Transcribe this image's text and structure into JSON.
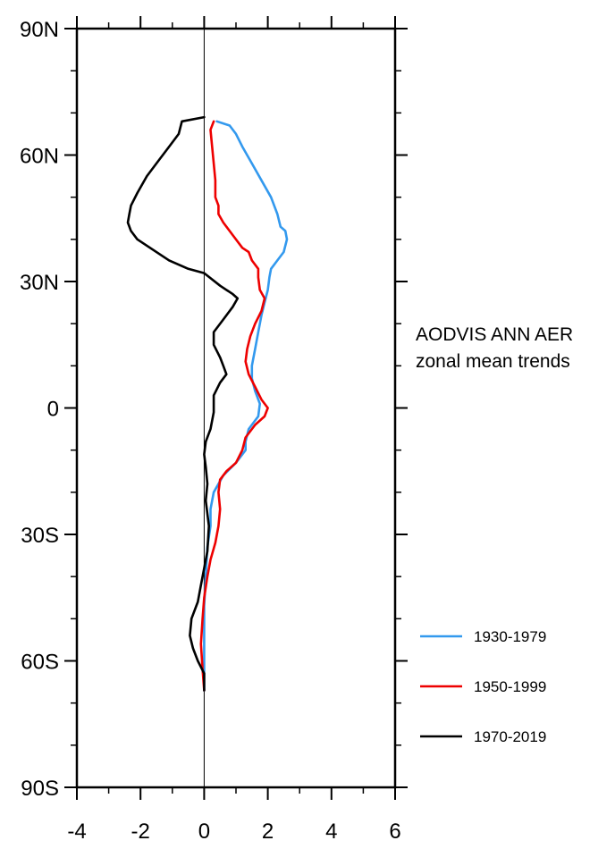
{
  "chart_data": {
    "type": "line",
    "orientation": "vertical-profile",
    "title_lines": [
      "AODVIS ANN AER",
      "zonal mean trends"
    ],
    "xlim": [
      -4,
      6
    ],
    "ylim": [
      -90,
      90
    ],
    "x_ticks": [
      -4,
      -2,
      0,
      2,
      4,
      6
    ],
    "x_tick_labels": [
      "-4",
      "-2",
      "0",
      "2",
      "4",
      "6"
    ],
    "y_ticks": [
      90,
      60,
      30,
      0,
      -30,
      -60,
      -90
    ],
    "y_tick_labels": [
      "90N",
      "60N",
      "30N",
      "0",
      "30S",
      "60S",
      "90S"
    ],
    "zero_line_x": 0,
    "series": [
      {
        "name": "1930-1979",
        "color": "#3399ee",
        "points": [
          [
            0.4,
            68
          ],
          [
            0.8,
            67
          ],
          [
            1.0,
            65
          ],
          [
            1.2,
            62
          ],
          [
            1.5,
            58
          ],
          [
            1.8,
            54
          ],
          [
            2.1,
            50
          ],
          [
            2.3,
            46
          ],
          [
            2.4,
            43
          ],
          [
            2.55,
            42
          ],
          [
            2.6,
            40
          ],
          [
            2.5,
            37
          ],
          [
            2.3,
            35
          ],
          [
            2.1,
            33
          ],
          [
            2.05,
            31
          ],
          [
            2.0,
            28
          ],
          [
            1.9,
            25
          ],
          [
            1.8,
            22
          ],
          [
            1.7,
            18
          ],
          [
            1.6,
            14
          ],
          [
            1.5,
            10
          ],
          [
            1.5,
            7
          ],
          [
            1.6,
            4
          ],
          [
            1.75,
            1
          ],
          [
            1.7,
            -2
          ],
          [
            1.4,
            -5
          ],
          [
            1.3,
            -8
          ],
          [
            1.3,
            -10
          ],
          [
            1.0,
            -13
          ],
          [
            0.6,
            -16
          ],
          [
            0.3,
            -20
          ],
          [
            0.2,
            -24
          ],
          [
            0.2,
            -28
          ],
          [
            0.1,
            -33
          ],
          [
            0.05,
            -40
          ],
          [
            0.0,
            -47
          ],
          [
            0.0,
            -55
          ],
          [
            0.0,
            -62
          ],
          [
            0.0,
            -67
          ]
        ]
      },
      {
        "name": "1950-1999",
        "color": "#ee0000",
        "points": [
          [
            0.3,
            68
          ],
          [
            0.2,
            66
          ],
          [
            0.25,
            62
          ],
          [
            0.3,
            58
          ],
          [
            0.35,
            54
          ],
          [
            0.35,
            50
          ],
          [
            0.45,
            48
          ],
          [
            0.45,
            46
          ],
          [
            0.6,
            44
          ],
          [
            0.9,
            41
          ],
          [
            1.2,
            38
          ],
          [
            1.4,
            37
          ],
          [
            1.5,
            35
          ],
          [
            1.7,
            33
          ],
          [
            1.7,
            31
          ],
          [
            1.75,
            28
          ],
          [
            1.9,
            26
          ],
          [
            1.8,
            23
          ],
          [
            1.6,
            20
          ],
          [
            1.45,
            17
          ],
          [
            1.35,
            14
          ],
          [
            1.3,
            11
          ],
          [
            1.4,
            8
          ],
          [
            1.6,
            5
          ],
          [
            1.8,
            2
          ],
          [
            2.0,
            0
          ],
          [
            1.9,
            -2
          ],
          [
            1.6,
            -4
          ],
          [
            1.3,
            -7
          ],
          [
            1.2,
            -10
          ],
          [
            1.0,
            -13
          ],
          [
            0.7,
            -15
          ],
          [
            0.5,
            -17
          ],
          [
            0.45,
            -20
          ],
          [
            0.5,
            -24
          ],
          [
            0.45,
            -28
          ],
          [
            0.35,
            -32
          ],
          [
            0.2,
            -36
          ],
          [
            0.1,
            -40
          ],
          [
            0.0,
            -45
          ],
          [
            -0.05,
            -50
          ],
          [
            -0.1,
            -56
          ],
          [
            -0.05,
            -62
          ],
          [
            0.0,
            -67
          ]
        ]
      },
      {
        "name": "1970-2019",
        "color": "#000000",
        "points": [
          [
            0.0,
            69
          ],
          [
            -0.7,
            68
          ],
          [
            -0.8,
            65
          ],
          [
            -1.1,
            62
          ],
          [
            -1.5,
            58
          ],
          [
            -1.8,
            55
          ],
          [
            -2.1,
            51
          ],
          [
            -2.3,
            48
          ],
          [
            -2.35,
            46
          ],
          [
            -2.4,
            44
          ],
          [
            -2.3,
            42
          ],
          [
            -2.1,
            40
          ],
          [
            -1.7,
            38
          ],
          [
            -1.1,
            35
          ],
          [
            -0.5,
            33
          ],
          [
            0.0,
            32
          ],
          [
            0.5,
            29
          ],
          [
            0.9,
            27
          ],
          [
            1.05,
            26
          ],
          [
            0.9,
            24
          ],
          [
            0.6,
            21
          ],
          [
            0.3,
            18
          ],
          [
            0.3,
            15
          ],
          [
            0.5,
            12
          ],
          [
            0.6,
            10
          ],
          [
            0.7,
            8
          ],
          [
            0.5,
            6
          ],
          [
            0.3,
            3
          ],
          [
            0.3,
            -1
          ],
          [
            0.2,
            -5
          ],
          [
            0.05,
            -8
          ],
          [
            0.0,
            -11
          ],
          [
            0.05,
            -14
          ],
          [
            0.1,
            -18
          ],
          [
            0.05,
            -22
          ],
          [
            0.15,
            -28
          ],
          [
            0.1,
            -34
          ],
          [
            0.0,
            -38
          ],
          [
            -0.1,
            -42
          ],
          [
            -0.2,
            -46
          ],
          [
            -0.4,
            -50
          ],
          [
            -0.45,
            -54
          ],
          [
            -0.35,
            -57
          ],
          [
            -0.2,
            -60
          ],
          [
            0.0,
            -63
          ],
          [
            0.0,
            -67
          ]
        ]
      }
    ]
  }
}
